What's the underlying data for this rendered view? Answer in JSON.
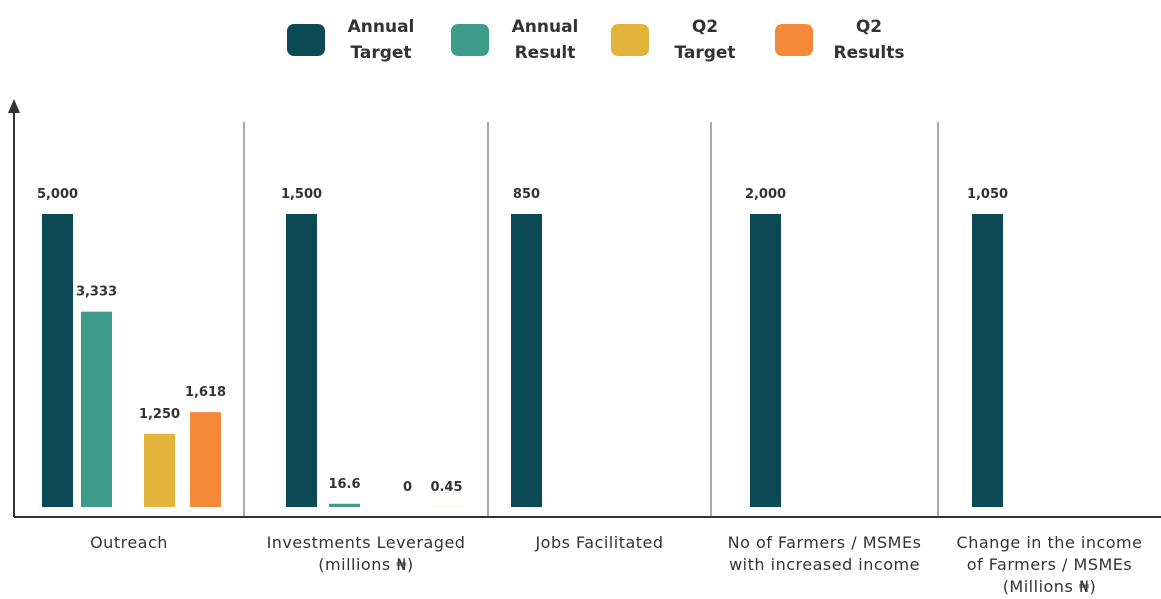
{
  "chart_data": {
    "type": "bar",
    "categories": [
      "Outreach",
      "Investments Leveraged (millions ₦)",
      "Jobs Facilitated",
      "No of Farmers / MSMEs with increased income",
      "Change in the income of Farmers / MSMEs (Millions ₦)"
    ],
    "series": [
      {
        "name": "Annual Target",
        "color": "#0b4a55",
        "values": [
          5000,
          1500,
          850,
          2000,
          1050
        ],
        "value_labels": [
          "5,000",
          "1,500",
          "850",
          "2,000",
          "1,050"
        ]
      },
      {
        "name": "Annual Result",
        "color": "#3f9b8a",
        "values": [
          3333,
          16.6,
          null,
          null,
          null
        ],
        "value_labels": [
          "3,333",
          "16.6",
          null,
          null,
          null
        ]
      },
      {
        "name": "Q2 Target",
        "color": "#e2b43c",
        "values": [
          1250,
          0,
          null,
          null,
          null
        ],
        "value_labels": [
          "1,250",
          "0",
          null,
          null,
          null
        ]
      },
      {
        "name": "Q2 Results",
        "color": "#f5893a",
        "values": [
          1618,
          0.45,
          null,
          null,
          null
        ],
        "value_labels": [
          "1,618",
          "0.45",
          null,
          null,
          null
        ]
      }
    ]
  }
}
